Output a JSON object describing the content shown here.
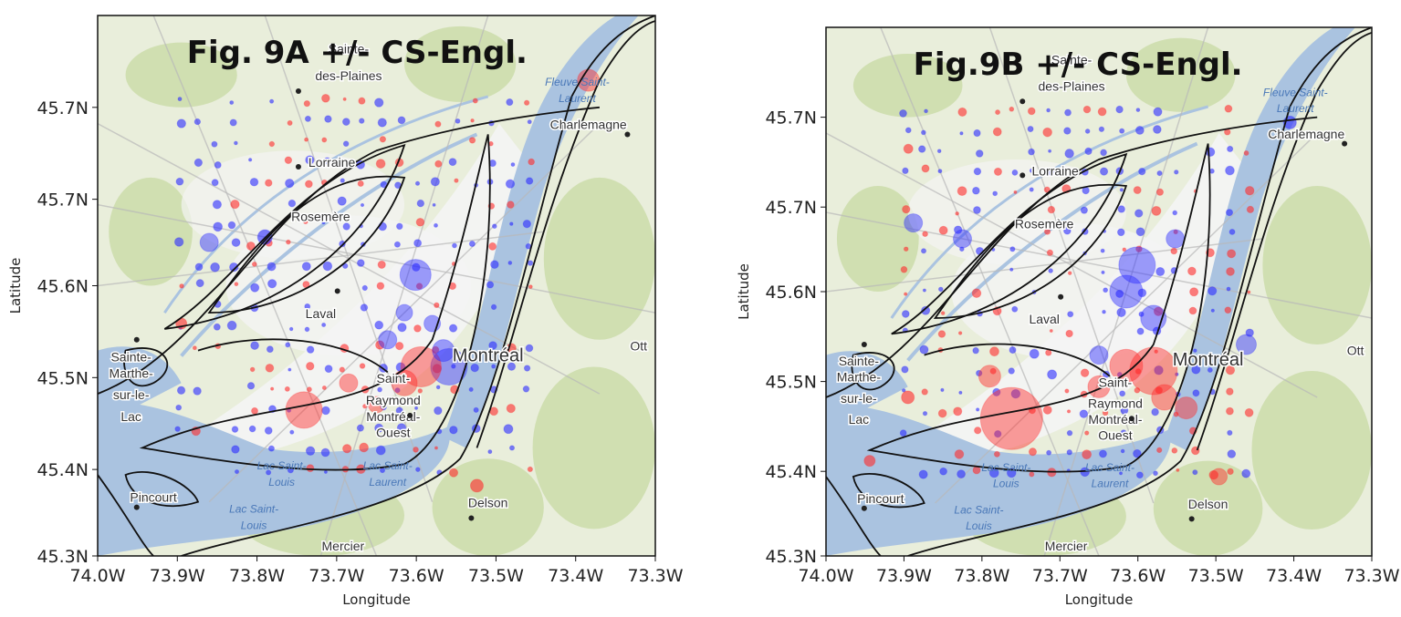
{
  "panels": [
    {
      "id": "A",
      "title": "Fig. 9A +/- CS-Engl.",
      "xlabel": "Longitude",
      "ylabel": "Latitude",
      "xticks": [
        "74.0W",
        "73.9W",
        "73.8W",
        "73.7W",
        "73.6W",
        "73.5W",
        "73.4W",
        "73.3W"
      ],
      "yticks": [
        "45.7N",
        "45.7N",
        "45.6N",
        "45.5N",
        "45.4N",
        "45.3N"
      ],
      "places": [
        "Sainte-",
        "des-Plaines",
        "Lorraine",
        "Rosemère",
        "Laval",
        "Charlemagne",
        "Sainte-",
        "Marthe-",
        "sur-le-",
        "Lac",
        "Saint-",
        "Raymond",
        "Montréal-",
        "Ouest",
        "Montréal",
        "Pincourt",
        "Delson",
        "Mercier",
        "Fleuve Saint-",
        "Laurent",
        "Lac Saint-",
        "Louis",
        "Lac Saint-",
        "Laurent",
        "Lac Saint-",
        "Louis",
        "Ott"
      ]
    },
    {
      "id": "B",
      "title": "Fig.9B +/- CS-Engl.",
      "xlabel": "Longitude",
      "ylabel": "Latitude",
      "xticks": [
        "74.0W",
        "73.9W",
        "73.8W",
        "73.7W",
        "73.6W",
        "73.5W",
        "73.4W",
        "73.3W"
      ],
      "yticks": [
        "45.7N",
        "45.7N",
        "45.6N",
        "45.5N",
        "45.4N",
        "45.3N"
      ],
      "places": [
        "Sainte-",
        "des-Plaines",
        "Lorraine",
        "Rosemère",
        "Laval",
        "Charlemagne",
        "Sainte-",
        "Marthe-",
        "sur-le-",
        "Lac",
        "Saint-",
        "Raymond",
        "Montréal-",
        "Ouest",
        "Montréal",
        "Pincourt",
        "Delson",
        "Mercier",
        "Fleuve Saint-",
        "Laurent",
        "Lac Saint-",
        "Louis",
        "Lac Saint-",
        "Laurent",
        "Lac Saint-",
        "Louis",
        "Ott"
      ]
    }
  ],
  "colors": {
    "positive": "#ff2a2a",
    "negative": "#2a2aff",
    "land": "#e9eedb",
    "green": "#c9dba6",
    "water": "#aac3e0",
    "urban": "#f4f4f4"
  },
  "chart_data": {
    "type": "scatter",
    "description_of_marks": "bubble map; red = positive, blue = negative",
    "series": [
      {
        "name": "",
        "color": "red"
      },
      {
        "name": "",
        "color": "blue"
      }
    ],
    "xlim": [
      "74.0W",
      "73.3W"
    ],
    "ylim": [
      "45.3N",
      "45.8N"
    ]
  }
}
